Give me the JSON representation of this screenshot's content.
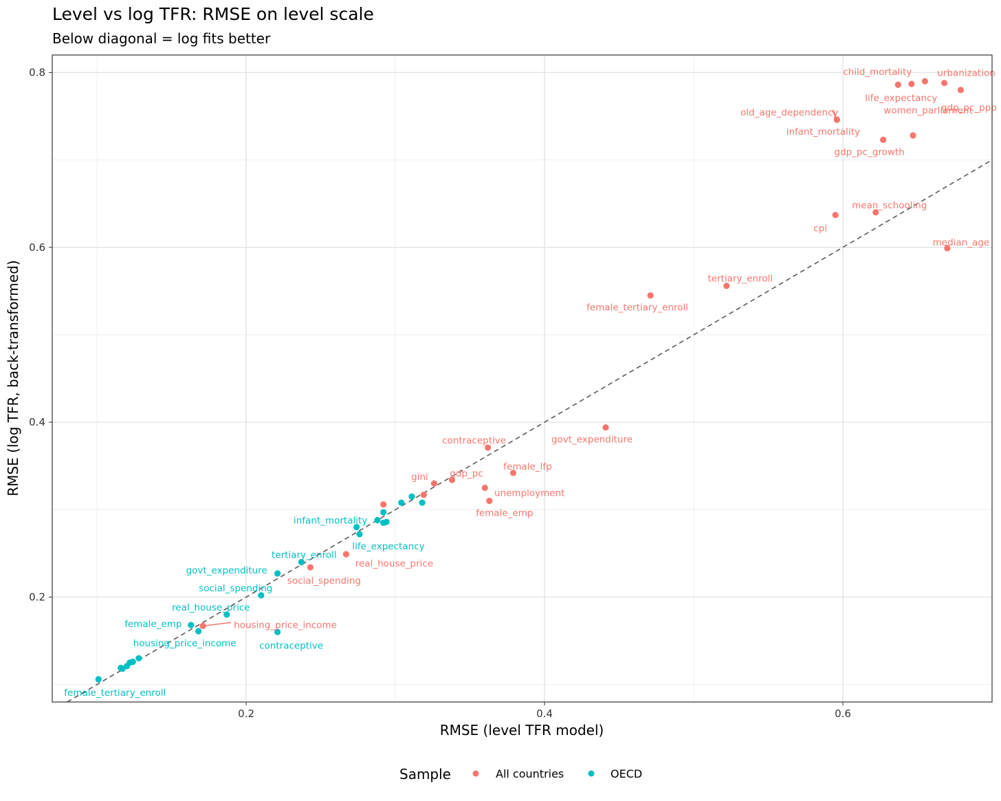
{
  "chart_data": {
    "type": "scatter",
    "title": "Level vs log TFR: RMSE on level scale",
    "subtitle": "Below diagonal = log fits better",
    "xlabel": "RMSE (level TFR model)",
    "ylabel": "RMSE (log TFR, back-transformed)",
    "xlim": [
      0.07,
      0.7
    ],
    "ylim": [
      0.08,
      0.82
    ],
    "x_ticks": [
      0.2,
      0.4,
      0.6
    ],
    "y_ticks": [
      0.2,
      0.4,
      0.6,
      0.8
    ],
    "x_tick_labels": [
      "0.2",
      "0.4",
      "0.6"
    ],
    "y_tick_labels": [
      "0.2",
      "0.4",
      "0.6",
      "0.8"
    ],
    "reference_line": "y = x (dashed)",
    "grid": true,
    "legend": {
      "title": "Sample",
      "position": "bottom",
      "entries": [
        {
          "name": "All countries",
          "color": "#F8766D"
        },
        {
          "name": "OECD",
          "color": "#00BFC4"
        }
      ]
    },
    "series": [
      {
        "name": "All countries",
        "color": "#F8766D",
        "points": [
          {
            "label": "child_mortality",
            "x": 0.637,
            "y": 0.786
          },
          {
            "label": "urbanization",
            "x": 0.668,
            "y": 0.788
          },
          {
            "label": "life_expectancy",
            "x": 0.646,
            "y": 0.787
          },
          {
            "label": "",
            "x": 0.655,
            "y": 0.79
          },
          {
            "label": "gdp_pc_ppp",
            "x": 0.679,
            "y": 0.78
          },
          {
            "label": "old_age_dependency",
            "x": 0.596,
            "y": 0.746
          },
          {
            "label": "infant_mortality",
            "x": 0.596,
            "y": 0.746
          },
          {
            "label": "women_parliament",
            "x": 0.647,
            "y": 0.728
          },
          {
            "label": "gdp_pc_growth",
            "x": 0.627,
            "y": 0.723
          },
          {
            "label": "mean_schooling",
            "x": 0.622,
            "y": 0.64
          },
          {
            "label": "cpi",
            "x": 0.595,
            "y": 0.637
          },
          {
            "label": "median_age",
            "x": 0.67,
            "y": 0.599
          },
          {
            "label": "tertiary_enroll",
            "x": 0.522,
            "y": 0.556
          },
          {
            "label": "female_tertiary_enroll",
            "x": 0.471,
            "y": 0.545
          },
          {
            "label": "govt_expenditure",
            "x": 0.441,
            "y": 0.394
          },
          {
            "label": "contraceptive",
            "x": 0.362,
            "y": 0.371
          },
          {
            "label": "female_lfp",
            "x": 0.379,
            "y": 0.342
          },
          {
            "label": "gdp_pc",
            "x": 0.338,
            "y": 0.334
          },
          {
            "label": "gini",
            "x": 0.326,
            "y": 0.33
          },
          {
            "label": "",
            "x": 0.319,
            "y": 0.317
          },
          {
            "label": "unemployment",
            "x": 0.36,
            "y": 0.325
          },
          {
            "label": "female_emp",
            "x": 0.363,
            "y": 0.31
          },
          {
            "label": "",
            "x": 0.292,
            "y": 0.306
          },
          {
            "label": "real_house_price",
            "x": 0.267,
            "y": 0.249
          },
          {
            "label": "social_spending",
            "x": 0.243,
            "y": 0.234
          },
          {
            "label": "housing_price_income",
            "x": 0.171,
            "y": 0.167
          }
        ]
      },
      {
        "name": "OECD",
        "color": "#00BFC4",
        "points": [
          {
            "label": "",
            "x": 0.311,
            "y": 0.315
          },
          {
            "label": "",
            "x": 0.318,
            "y": 0.308
          },
          {
            "label": "",
            "x": 0.304,
            "y": 0.308
          },
          {
            "label": "",
            "x": 0.292,
            "y": 0.297
          },
          {
            "label": "",
            "x": 0.288,
            "y": 0.288
          },
          {
            "label": "",
            "x": 0.292,
            "y": 0.285
          },
          {
            "label": "",
            "x": 0.294,
            "y": 0.286
          },
          {
            "label": "infant_mortality",
            "x": 0.274,
            "y": 0.28
          },
          {
            "label": "life_expectancy",
            "x": 0.276,
            "y": 0.272
          },
          {
            "label": "tertiary_enroll",
            "x": 0.237,
            "y": 0.24
          },
          {
            "label": "govt_expenditure",
            "x": 0.221,
            "y": 0.227
          },
          {
            "label": "social_spending",
            "x": 0.21,
            "y": 0.202
          },
          {
            "label": "real_house_price",
            "x": 0.187,
            "y": 0.18
          },
          {
            "label": "female_emp",
            "x": 0.163,
            "y": 0.168
          },
          {
            "label": "housing_price_income",
            "x": 0.168,
            "y": 0.161
          },
          {
            "label": "contraceptive",
            "x": 0.221,
            "y": 0.16
          },
          {
            "label": "",
            "x": 0.128,
            "y": 0.13
          },
          {
            "label": "",
            "x": 0.124,
            "y": 0.126
          },
          {
            "label": "",
            "x": 0.122,
            "y": 0.125
          },
          {
            "label": "",
            "x": 0.12,
            "y": 0.121
          },
          {
            "label": "",
            "x": 0.117,
            "y": 0.118
          },
          {
            "label": "",
            "x": 0.116,
            "y": 0.119
          },
          {
            "label": "female_tertiary_enroll",
            "x": 0.101,
            "y": 0.106
          }
        ]
      }
    ]
  }
}
